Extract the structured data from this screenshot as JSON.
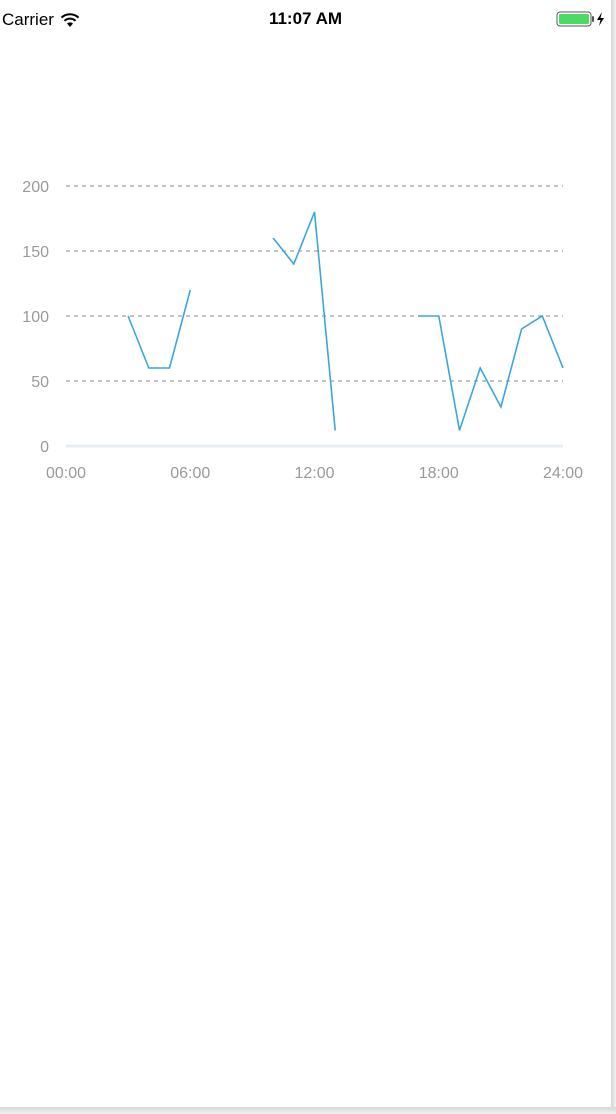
{
  "status_bar": {
    "carrier": "Carrier",
    "time": "11:07 AM",
    "wifi_icon": "wifi-icon",
    "battery_icon": "battery-charging-icon",
    "battery_color": "#4cd964"
  },
  "chart_data": {
    "type": "line",
    "title": "",
    "xlabel": "",
    "ylabel": "",
    "x_ticks": [
      "00:00",
      "06:00",
      "12:00",
      "18:00",
      "24:00"
    ],
    "y_ticks": [
      "0",
      "50",
      "100",
      "150",
      "200"
    ],
    "xlim": [
      0,
      24
    ],
    "ylim": [
      0,
      200
    ],
    "grid": "horizontal-dashed",
    "line_color": "#3aa6e0",
    "series": [
      {
        "segments": [
          [
            [
              3,
              100
            ],
            [
              4,
              60
            ],
            [
              5,
              60
            ],
            [
              6,
              120
            ]
          ],
          [
            [
              10,
              160
            ],
            [
              11,
              140
            ],
            [
              12,
              180
            ],
            [
              13,
              12
            ]
          ],
          [
            [
              17,
              100
            ],
            [
              18,
              100
            ],
            [
              19,
              12
            ],
            [
              20,
              60
            ],
            [
              21,
              30
            ],
            [
              22,
              90
            ],
            [
              23,
              100
            ],
            [
              24,
              60
            ]
          ]
        ]
      }
    ]
  }
}
